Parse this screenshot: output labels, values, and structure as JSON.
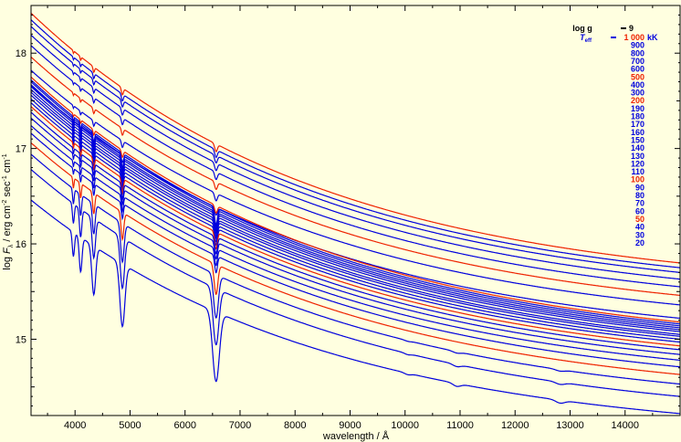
{
  "chart_data": {
    "type": "line",
    "title": "",
    "xlabel": "wavelength / Å",
    "ylabel": {
      "main": "log ",
      "F": "F",
      "sub": "λ",
      "slash_erg": " / erg cm",
      "exp1": "-2",
      "sec": " sec",
      "exp2": "-1",
      "cm": " cm",
      "exp3": "-1"
    },
    "xlim": [
      3200,
      15000
    ],
    "ylim": [
      14.2,
      18.5
    ],
    "xticks": [
      4000,
      5000,
      6000,
      7000,
      8000,
      9000,
      10000,
      11000,
      12000,
      13000,
      14000
    ],
    "yticks": [
      15,
      16,
      17,
      18
    ],
    "grid": false,
    "legend": {
      "placement": "top-right",
      "logg_label": "log g",
      "logg_value": "9",
      "teff_label": "T",
      "teff_sub": "eff",
      "unit": "kK"
    },
    "series": [
      {
        "name": "1 000",
        "teff_kK": 1000,
        "color": "#ee2200",
        "y_start": 18.42,
        "y_end": 15.8
      },
      {
        "name": "900",
        "teff_kK": 900,
        "color": "#0000dd",
        "y_start": 18.35,
        "y_end": 15.75
      },
      {
        "name": "800",
        "teff_kK": 800,
        "color": "#0000dd",
        "y_start": 18.28,
        "y_end": 15.7
      },
      {
        "name": "700",
        "teff_kK": 700,
        "color": "#0000dd",
        "y_start": 18.19,
        "y_end": 15.63
      },
      {
        "name": "600",
        "teff_kK": 600,
        "color": "#0000dd",
        "y_start": 18.08,
        "y_end": 15.55
      },
      {
        "name": "500",
        "teff_kK": 500,
        "color": "#ee2200",
        "y_start": 17.96,
        "y_end": 15.46
      },
      {
        "name": "400",
        "teff_kK": 400,
        "color": "#0000dd",
        "y_start": 17.82,
        "y_end": 15.36
      },
      {
        "name": "300",
        "teff_kK": 300,
        "color": "#0000dd",
        "y_start": 17.66,
        "y_end": 15.22
      },
      {
        "name": "200",
        "teff_kK": 200,
        "color": "#ee2200",
        "y_start": 17.75,
        "y_end": 15.18
      },
      {
        "name": "190",
        "teff_kK": 190,
        "color": "#0000dd",
        "y_start": 17.72,
        "y_end": 15.16
      },
      {
        "name": "180",
        "teff_kK": 180,
        "color": "#0000dd",
        "y_start": 17.7,
        "y_end": 15.14
      },
      {
        "name": "170",
        "teff_kK": 170,
        "color": "#0000dd",
        "y_start": 17.67,
        "y_end": 15.12
      },
      {
        "name": "160",
        "teff_kK": 160,
        "color": "#0000dd",
        "y_start": 17.65,
        "y_end": 15.1
      },
      {
        "name": "150",
        "teff_kK": 150,
        "color": "#0000dd",
        "y_start": 17.62,
        "y_end": 15.08
      },
      {
        "name": "140",
        "teff_kK": 140,
        "color": "#0000dd",
        "y_start": 17.59,
        "y_end": 15.05
      },
      {
        "name": "130",
        "teff_kK": 130,
        "color": "#0000dd",
        "y_start": 17.56,
        "y_end": 15.03
      },
      {
        "name": "120",
        "teff_kK": 120,
        "color": "#0000dd",
        "y_start": 17.52,
        "y_end": 15.0
      },
      {
        "name": "110",
        "teff_kK": 110,
        "color": "#0000dd",
        "y_start": 17.48,
        "y_end": 14.97
      },
      {
        "name": "100",
        "teff_kK": 100,
        "color": "#ee2200",
        "y_start": 17.44,
        "y_end": 14.93
      },
      {
        "name": "90",
        "teff_kK": 90,
        "color": "#0000dd",
        "y_start": 17.38,
        "y_end": 14.89
      },
      {
        "name": "80",
        "teff_kK": 80,
        "color": "#0000dd",
        "y_start": 17.32,
        "y_end": 14.84
      },
      {
        "name": "70",
        "teff_kK": 70,
        "color": "#0000dd",
        "y_start": 17.24,
        "y_end": 14.78
      },
      {
        "name": "60",
        "teff_kK": 60,
        "color": "#0000dd",
        "y_start": 17.16,
        "y_end": 14.71
      },
      {
        "name": "50",
        "teff_kK": 50,
        "color": "#ee2200",
        "y_start": 17.06,
        "y_end": 14.63
      },
      {
        "name": "40",
        "teff_kK": 40,
        "color": "#0000dd",
        "y_start": 16.94,
        "y_end": 14.53
      },
      {
        "name": "30",
        "teff_kK": 30,
        "color": "#0000dd",
        "y_start": 16.78,
        "y_end": 14.4
      },
      {
        "name": "20",
        "teff_kK": 20,
        "color": "#0000dd",
        "y_start": 16.46,
        "y_end": 14.22
      }
    ]
  }
}
